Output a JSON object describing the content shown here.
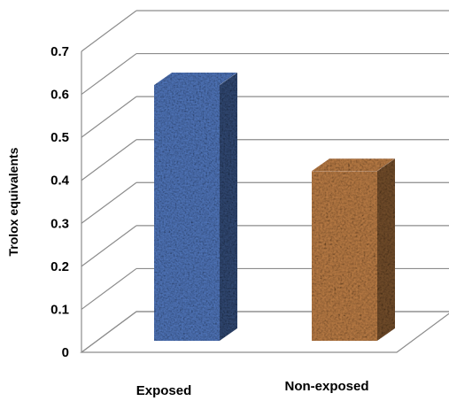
{
  "chart_data": {
    "type": "bar",
    "categories": [
      "Exposed",
      "Non-exposed"
    ],
    "values": [
      0.595,
      0.395
    ],
    "ylabel": "Trolox equivalents",
    "xlabel": "",
    "ylim": [
      0,
      0.7
    ],
    "yticks": [
      "0",
      "0.1",
      "0.2",
      "0.3",
      "0.4",
      "0.5",
      "0.6",
      "0.7"
    ],
    "grid": true,
    "legend": "none",
    "colors": [
      "#4f74b8",
      "#b77a44"
    ]
  }
}
